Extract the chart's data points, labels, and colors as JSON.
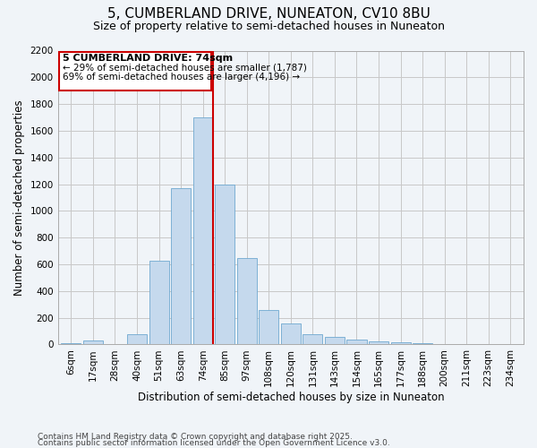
{
  "title_line1": "5, CUMBERLAND DRIVE, NUNEATON, CV10 8BU",
  "title_line2": "Size of property relative to semi-detached houses in Nuneaton",
  "xlabel": "Distribution of semi-detached houses by size in Nuneaton",
  "ylabel": "Number of semi-detached properties",
  "footnote1": "Contains HM Land Registry data © Crown copyright and database right 2025.",
  "footnote2": "Contains public sector information licensed under the Open Government Licence v3.0.",
  "subject_label": "5 CUMBERLAND DRIVE: 74sqm",
  "smaller_text": "← 29% of semi-detached houses are smaller (1,787)",
  "larger_text": "69% of semi-detached houses are larger (4,196) →",
  "categories": [
    "6sqm",
    "17sqm",
    "28sqm",
    "40sqm",
    "51sqm",
    "63sqm",
    "74sqm",
    "85sqm",
    "97sqm",
    "108sqm",
    "120sqm",
    "131sqm",
    "143sqm",
    "154sqm",
    "165sqm",
    "177sqm",
    "188sqm",
    "200sqm",
    "211sqm",
    "223sqm",
    "234sqm"
  ],
  "values": [
    10,
    30,
    0,
    80,
    630,
    1170,
    1700,
    1200,
    650,
    255,
    155,
    80,
    55,
    35,
    25,
    15,
    10,
    5,
    5,
    0,
    0
  ],
  "bar_color": "#c5d9ed",
  "bar_edge_color": "#6fa8d0",
  "vline_color": "#cc0000",
  "box_edge_color": "#cc0000",
  "grid_color": "#c8c8c8",
  "background_color": "#f0f4f8",
  "ylim": [
    0,
    2200
  ],
  "yticks": [
    0,
    200,
    400,
    600,
    800,
    1000,
    1200,
    1400,
    1600,
    1800,
    2000,
    2200
  ],
  "subject_bin_index": 6,
  "title_fontsize": 11,
  "subtitle_fontsize": 9,
  "axis_label_fontsize": 8.5,
  "tick_fontsize": 7.5,
  "annotation_fontsize": 8,
  "footnote_fontsize": 6.5
}
